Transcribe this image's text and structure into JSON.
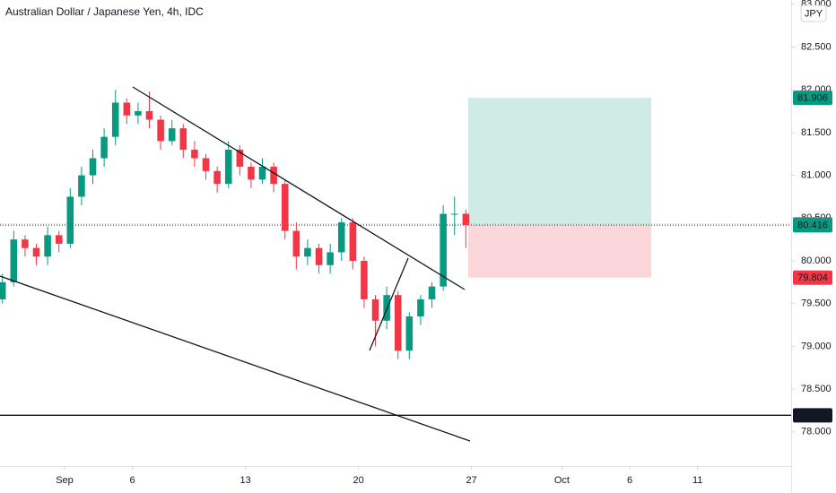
{
  "chart_data": {
    "type": "candlestick",
    "title": "Australian Dollar / Japanese Yen, 4h, IDC",
    "currency": "JPY",
    "up_color": "#089981",
    "down_color": "#f23645",
    "x": [
      -2.75,
      -2.25,
      -1.75,
      -1.25,
      -0.75,
      -0.25,
      0.25,
      0.75,
      1.25,
      1.75,
      2.25,
      2.75,
      3.25,
      3.75,
      4.25,
      4.75,
      5.25,
      5.75,
      6.25,
      6.75,
      7.25,
      7.75,
      8.25,
      8.75,
      9.25,
      9.75,
      10.25,
      10.75,
      11.25,
      11.75,
      12.25,
      12.75,
      13.25,
      13.75,
      14.25,
      14.75,
      15.25,
      15.75,
      16.25,
      16.75,
      17.25,
      17.75
    ],
    "open": [
      79.55,
      79.75,
      80.25,
      80.15,
      80.05,
      80.3,
      80.2,
      80.75,
      81.0,
      81.2,
      81.45,
      81.85,
      81.7,
      81.75,
      81.65,
      81.4,
      81.55,
      81.3,
      81.2,
      81.05,
      80.9,
      81.3,
      81.1,
      80.95,
      81.1,
      80.9,
      80.35,
      80.05,
      80.15,
      79.95,
      80.1,
      80.45,
      80.0,
      79.55,
      79.3,
      79.6,
      78.95,
      79.35,
      79.55,
      79.7,
      80.55,
      80.55
    ],
    "high": [
      79.85,
      80.35,
      80.3,
      80.2,
      80.4,
      80.35,
      80.85,
      81.1,
      81.3,
      81.55,
      82.0,
      81.9,
      81.85,
      81.98,
      81.7,
      81.65,
      81.6,
      81.4,
      81.25,
      81.1,
      81.4,
      81.35,
      81.15,
      81.2,
      81.15,
      80.95,
      80.45,
      80.25,
      80.2,
      80.2,
      80.5,
      80.5,
      80.05,
      79.6,
      79.7,
      79.65,
      79.4,
      79.6,
      79.75,
      80.65,
      80.75,
      80.6
    ],
    "low": [
      79.5,
      79.7,
      80.05,
      79.95,
      79.95,
      80.1,
      80.15,
      80.65,
      80.9,
      81.1,
      81.35,
      81.6,
      81.6,
      81.55,
      81.3,
      81.35,
      81.2,
      81.1,
      80.95,
      80.8,
      80.85,
      81.0,
      80.85,
      80.9,
      80.8,
      80.25,
      79.9,
      79.95,
      79.85,
      79.85,
      80.0,
      79.9,
      79.45,
      79.0,
      79.2,
      78.85,
      78.85,
      79.25,
      79.45,
      79.65,
      80.3,
      80.15
    ],
    "close": [
      79.75,
      80.25,
      80.15,
      80.05,
      80.3,
      80.2,
      80.75,
      81.0,
      81.2,
      81.45,
      81.85,
      81.7,
      81.75,
      81.65,
      81.4,
      81.55,
      81.3,
      81.2,
      81.05,
      80.9,
      81.3,
      81.1,
      80.95,
      81.1,
      80.9,
      80.35,
      80.05,
      80.15,
      79.95,
      80.1,
      80.45,
      80.0,
      79.55,
      79.3,
      79.6,
      78.95,
      79.35,
      79.55,
      79.7,
      80.55,
      80.55,
      80.42
    ],
    "xlim": [
      -2.857,
      32.14
    ],
    "ylim": [
      77.6,
      83.05
    ],
    "xticks": [
      {
        "value": 0,
        "label": "Sep"
      },
      {
        "value": 3,
        "label": "6"
      },
      {
        "value": 8,
        "label": "13"
      },
      {
        "value": 13,
        "label": "20"
      },
      {
        "value": 18,
        "label": "27"
      },
      {
        "value": 22,
        "label": "Oct"
      },
      {
        "value": 25,
        "label": "6"
      },
      {
        "value": 28,
        "label": "11"
      }
    ],
    "yticks": [
      {
        "value": 78,
        "label": "78.000"
      },
      {
        "value": 78.5,
        "label": "78.500"
      },
      {
        "value": 79,
        "label": "79.000"
      },
      {
        "value": 79.5,
        "label": "79.500"
      },
      {
        "value": 80,
        "label": "80.000"
      },
      {
        "value": 80.5,
        "label": "80.500"
      },
      {
        "value": 81,
        "label": "81.000"
      },
      {
        "value": 81.5,
        "label": "81.500"
      },
      {
        "value": 82,
        "label": "82.000"
      },
      {
        "value": 82.5,
        "label": "82.500"
      },
      {
        "value": 83,
        "label": "83.000"
      }
    ],
    "target": 81.906,
    "entry": 80.416,
    "stop": 79.804,
    "last_price": 80.427,
    "support": 78.194
  }
}
